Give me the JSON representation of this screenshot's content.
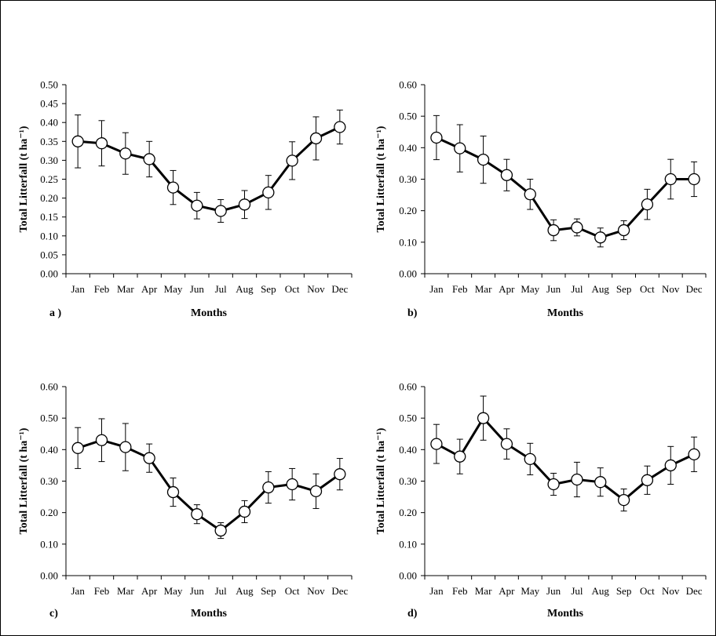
{
  "chart_data": [
    {
      "type": "line",
      "panel_label": "a )",
      "xlabel": "Months",
      "ylabel": "Total Litterfall (t ha⁻¹)",
      "ylim": [
        0,
        0.5
      ],
      "yticks": [
        0.0,
        0.05,
        0.1,
        0.15,
        0.2,
        0.25,
        0.3,
        0.35,
        0.4,
        0.45,
        0.5
      ],
      "ytick_decimals": 2,
      "categories": [
        "Jan",
        "Feb",
        "Mar",
        "Apr",
        "May",
        "Jun",
        "Jul",
        "Aug",
        "Sep",
        "Oct",
        "Nov",
        "Dec"
      ],
      "values": [
        0.35,
        0.345,
        0.318,
        0.303,
        0.228,
        0.18,
        0.166,
        0.183,
        0.215,
        0.299,
        0.358,
        0.388
      ],
      "errors": [
        0.07,
        0.06,
        0.055,
        0.047,
        0.045,
        0.035,
        0.03,
        0.037,
        0.045,
        0.05,
        0.057,
        0.045
      ]
    },
    {
      "type": "line",
      "panel_label": "b)",
      "xlabel": "Months",
      "ylabel": "Total Litterfall (t ha⁻¹)",
      "ylim": [
        0,
        0.6
      ],
      "yticks": [
        0.0,
        0.1,
        0.2,
        0.3,
        0.4,
        0.5,
        0.6
      ],
      "ytick_decimals": 2,
      "categories": [
        "Jan",
        "Feb",
        "Mar",
        "Apr",
        "May",
        "Jun",
        "Jul",
        "Aug",
        "Sep",
        "Oct",
        "Nov",
        "Dec"
      ],
      "values": [
        0.432,
        0.398,
        0.362,
        0.313,
        0.252,
        0.138,
        0.147,
        0.115,
        0.138,
        0.22,
        0.3,
        0.3
      ],
      "errors": [
        0.07,
        0.075,
        0.075,
        0.05,
        0.048,
        0.033,
        0.027,
        0.03,
        0.03,
        0.048,
        0.063,
        0.055
      ]
    },
    {
      "type": "line",
      "panel_label": "c)",
      "xlabel": "Months",
      "ylabel": "Total Litterfall (t ha⁻¹)",
      "ylim": [
        0,
        0.6
      ],
      "yticks": [
        0.0,
        0.1,
        0.2,
        0.3,
        0.4,
        0.5,
        0.6
      ],
      "ytick_decimals": 2,
      "categories": [
        "Jan",
        "Feb",
        "Mar",
        "Apr",
        "May",
        "Jun",
        "Jul",
        "Aug",
        "Sep",
        "Oct",
        "Nov",
        "Dec"
      ],
      "values": [
        0.405,
        0.43,
        0.408,
        0.373,
        0.265,
        0.195,
        0.143,
        0.203,
        0.28,
        0.29,
        0.268,
        0.322
      ],
      "errors": [
        0.065,
        0.068,
        0.075,
        0.045,
        0.045,
        0.03,
        0.025,
        0.035,
        0.05,
        0.05,
        0.055,
        0.05
      ]
    },
    {
      "type": "line",
      "panel_label": "d)",
      "xlabel": "Months",
      "ylabel": "Total Litterfall (t ha⁻¹)",
      "ylim": [
        0,
        0.6
      ],
      "yticks": [
        0.0,
        0.1,
        0.2,
        0.3,
        0.4,
        0.5,
        0.6
      ],
      "ytick_decimals": 2,
      "categories": [
        "Jan",
        "Feb",
        "Mar",
        "Apr",
        "May",
        "Jun",
        "Jul",
        "Aug",
        "Sep",
        "Oct",
        "Nov",
        "Dec"
      ],
      "values": [
        0.418,
        0.378,
        0.5,
        0.418,
        0.37,
        0.29,
        0.305,
        0.297,
        0.24,
        0.303,
        0.35,
        0.385
      ],
      "errors": [
        0.062,
        0.055,
        0.07,
        0.048,
        0.05,
        0.035,
        0.055,
        0.045,
        0.035,
        0.045,
        0.06,
        0.055
      ]
    }
  ]
}
